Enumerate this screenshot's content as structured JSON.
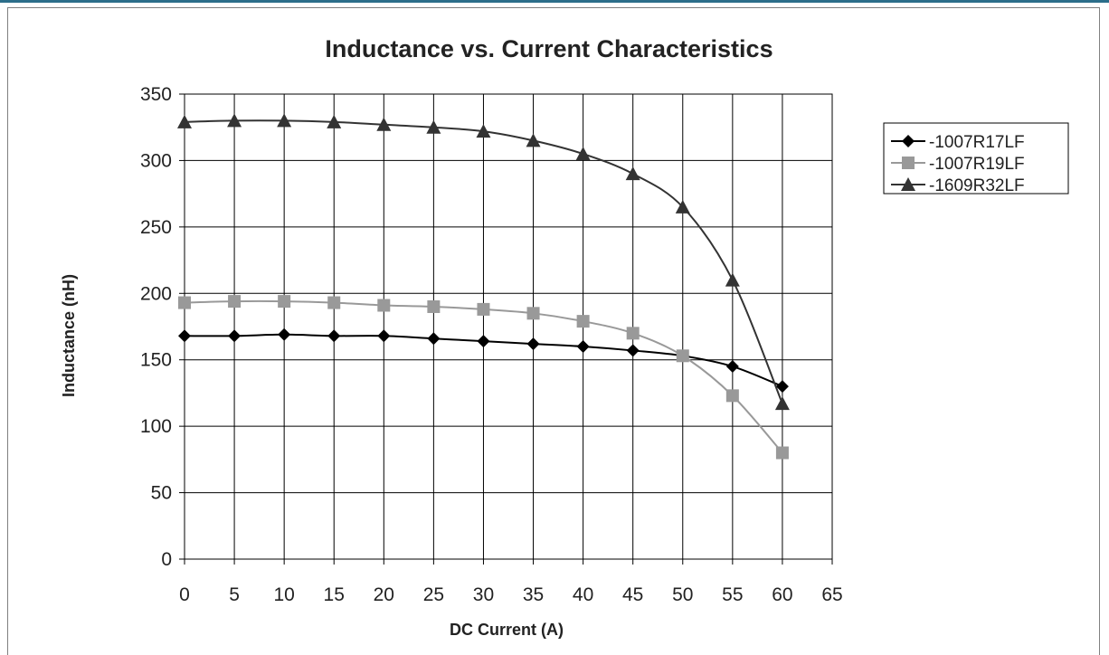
{
  "chart_data": {
    "type": "line",
    "title": "Inductance vs. Current Characteristics",
    "xlabel": "DC Current (A)",
    "ylabel": "Inductance (nH)",
    "xlim": [
      0,
      65
    ],
    "ylim": [
      0,
      350
    ],
    "xticks": [
      0,
      5,
      10,
      15,
      20,
      25,
      30,
      35,
      40,
      45,
      50,
      55,
      60,
      65
    ],
    "yticks": [
      0,
      50,
      100,
      150,
      200,
      250,
      300,
      350
    ],
    "grid": true,
    "legend_position": "right",
    "x": [
      0,
      5,
      10,
      15,
      20,
      25,
      30,
      35,
      40,
      45,
      50,
      55,
      60
    ],
    "series": [
      {
        "name": "-1007R17LF",
        "marker": "diamond",
        "color": "#000000",
        "values": [
          168,
          168,
          169,
          168,
          168,
          166,
          164,
          162,
          160,
          157,
          153,
          145,
          130
        ]
      },
      {
        "name": "-1007R19LF",
        "marker": "square",
        "color": "#999999",
        "values": [
          193,
          194,
          194,
          193,
          191,
          190,
          188,
          185,
          179,
          170,
          153,
          123,
          80
        ]
      },
      {
        "name": "-1609R32LF",
        "marker": "triangle",
        "color": "#333333",
        "values": [
          329,
          330,
          330,
          329,
          327,
          325,
          322,
          315,
          305,
          290,
          265,
          210,
          117
        ]
      }
    ]
  }
}
